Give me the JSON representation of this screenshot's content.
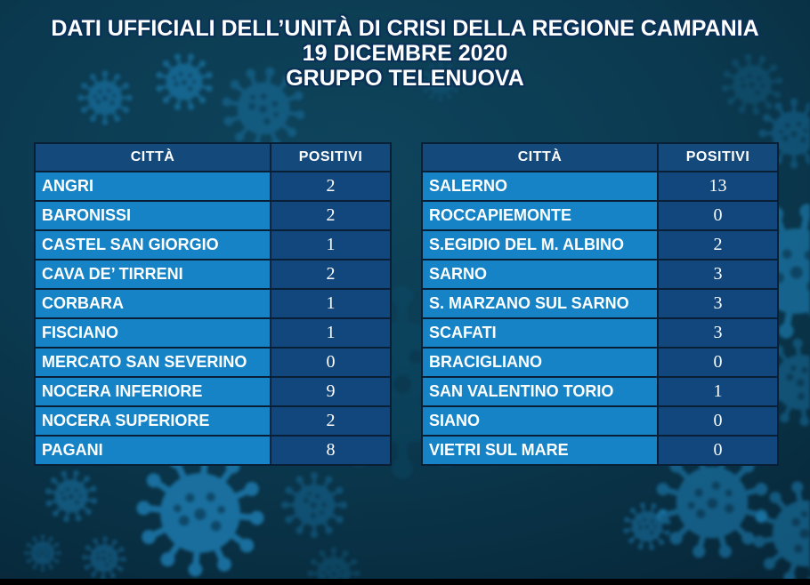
{
  "title": {
    "line1": "DATI UFFICIALI DELL’UNITÀ DI CRISI DELLA REGIONE CAMPANIA",
    "line2": "19 DICEMBRE 2020",
    "line3": "GRUPPO TELENUOVA"
  },
  "tables": [
    {
      "headers": {
        "city": "CITTÀ",
        "positivi": "POSITIVI"
      },
      "rows": [
        {
          "city": "ANGRI",
          "positivi": "2"
        },
        {
          "city": "BARONISSI",
          "positivi": "2"
        },
        {
          "city": "CASTEL SAN GIORGIO",
          "positivi": "1"
        },
        {
          "city": "CAVA DE’ TIRRENI",
          "positivi": "2"
        },
        {
          "city": "CORBARA",
          "positivi": "1"
        },
        {
          "city": "FISCIANO",
          "positivi": "1"
        },
        {
          "city": "MERCATO SAN SEVERINO",
          "positivi": "0"
        },
        {
          "city": "NOCERA INFERIORE",
          "positivi": "9"
        },
        {
          "city": "NOCERA SUPERIORE",
          "positivi": "2"
        },
        {
          "city": "PAGANI",
          "positivi": "8"
        }
      ]
    },
    {
      "headers": {
        "city": "CITTÀ",
        "positivi": "POSITIVI"
      },
      "rows": [
        {
          "city": "SALERNO",
          "positivi": "13"
        },
        {
          "city": "ROCCAPIEMONTE",
          "positivi": "0"
        },
        {
          "city": "S.EGIDIO DEL M. ALBINO",
          "positivi": "2"
        },
        {
          "city": "SARNO",
          "positivi": "3"
        },
        {
          "city": "S. MARZANO SUL SARNO",
          "positivi": "3"
        },
        {
          "city": "SCAFATI",
          "positivi": "3"
        },
        {
          "city": "BRACIGLIANO",
          "positivi": "0"
        },
        {
          "city": "SAN VALENTINO TORIO",
          "positivi": "1"
        },
        {
          "city": "SIANO",
          "positivi": "0"
        },
        {
          "city": "VIETRI SUL MARE",
          "positivi": "0"
        }
      ]
    }
  ],
  "colors": {
    "background": "#0b3a50",
    "header_cell": "#14497c",
    "city_cell": "#1583c6",
    "value_cell": "#11477d",
    "cell_border": "#081f36",
    "title_text": "#ffffff",
    "title_outline": "#0a3258",
    "virus_accent": "#1f86bd"
  }
}
